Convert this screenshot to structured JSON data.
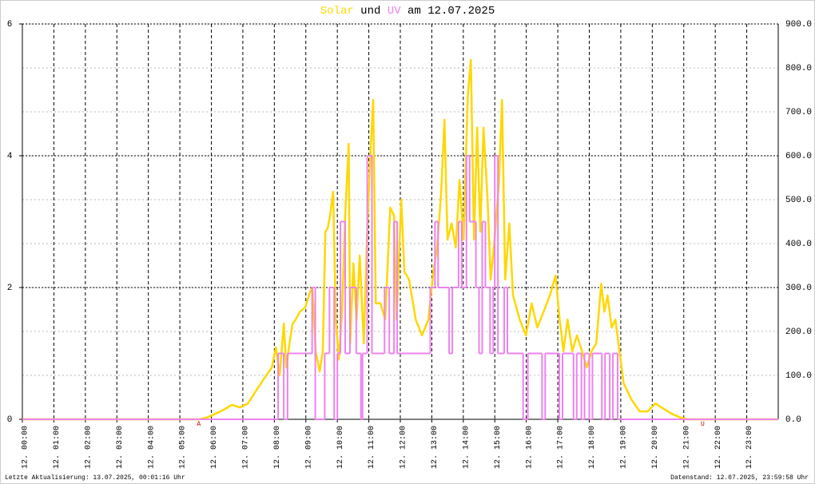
{
  "chart_data": {
    "type": "line",
    "title_joiner": "und",
    "title_suffix": "am 12.07.2025",
    "footer_left": "Letzte Aktualisierung: 13.07.2025, 00:01:16 Uhr",
    "footer_right": "Datenstand: 12.07.2025, 23:59:58 Uhr",
    "xlim": [
      0,
      24
    ],
    "xticks": [
      {
        "value": 0,
        "label": "12. 00:00"
      },
      {
        "value": 1,
        "label": "12. 01:00"
      },
      {
        "value": 2,
        "label": "12. 02:00"
      },
      {
        "value": 3,
        "label": "12. 03:00"
      },
      {
        "value": 4,
        "label": "12. 04:00"
      },
      {
        "value": 5,
        "label": "12. 05:00"
      },
      {
        "value": 6,
        "label": "12. 06:00"
      },
      {
        "value": 7,
        "label": "12. 07:00"
      },
      {
        "value": 8,
        "label": "12. 08:00"
      },
      {
        "value": 9,
        "label": "12. 09:00"
      },
      {
        "value": 10,
        "label": "12. 10:00"
      },
      {
        "value": 11,
        "label": "12. 11:00"
      },
      {
        "value": 12,
        "label": "12. 12:00"
      },
      {
        "value": 13,
        "label": "12. 13:00"
      },
      {
        "value": 14,
        "label": "12. 14:00"
      },
      {
        "value": 15,
        "label": "12. 15:00"
      },
      {
        "value": 16,
        "label": "12. 16:00"
      },
      {
        "value": 17,
        "label": "12. 17:00"
      },
      {
        "value": 18,
        "label": "12. 18:00"
      },
      {
        "value": 19,
        "label": "12. 19:00"
      },
      {
        "value": 20,
        "label": "12. 20:00"
      },
      {
        "value": 21,
        "label": "12. 21:00"
      },
      {
        "value": 22,
        "label": "12. 22:00"
      },
      {
        "value": 23,
        "label": "12. 23:00"
      }
    ],
    "ylim": [
      0,
      6
    ],
    "yticks": [
      0,
      2,
      4,
      6
    ],
    "y2lim": [
      0,
      900
    ],
    "y2ticks": [
      {
        "value": 0,
        "label": "0.0"
      },
      {
        "value": 100,
        "label": "100.0"
      },
      {
        "value": 200,
        "label": "200.0"
      },
      {
        "value": 300,
        "label": "300.0"
      },
      {
        "value": 400,
        "label": "400.0"
      },
      {
        "value": 500,
        "label": "500.0"
      },
      {
        "value": 600,
        "label": "600.0"
      },
      {
        "value": 700,
        "label": "700.0"
      },
      {
        "value": 800,
        "label": "800.0"
      },
      {
        "value": 900,
        "label": "900.0"
      }
    ],
    "grid": true,
    "markers": [
      {
        "label": "A",
        "x": 5.6,
        "color": "#c00000"
      },
      {
        "label": "U",
        "x": 21.6,
        "color": "#c00000"
      }
    ],
    "series": [
      {
        "name": "Solar",
        "color": "#ffd700",
        "axis": "y2",
        "x": [
          0,
          5.3,
          5.63,
          5.89,
          6.14,
          6.4,
          6.65,
          6.9,
          7.16,
          7.41,
          7.66,
          7.92,
          8.05,
          8.17,
          8.3,
          8.38,
          8.48,
          8.58,
          8.68,
          8.81,
          8.98,
          9.14,
          9.21,
          9.31,
          9.44,
          9.54,
          9.62,
          9.7,
          9.77,
          9.87,
          9.95,
          10.05,
          10.15,
          10.25,
          10.36,
          10.41,
          10.51,
          10.61,
          10.71,
          10.84,
          10.94,
          11.04,
          11.14,
          11.22,
          11.37,
          11.52,
          11.68,
          11.8,
          11.88,
          12.03,
          12.13,
          12.28,
          12.49,
          12.69,
          12.89,
          13.05,
          13.17,
          13.3,
          13.4,
          13.5,
          13.63,
          13.76,
          13.88,
          14.01,
          14.14,
          14.24,
          14.34,
          14.44,
          14.54,
          14.64,
          14.77,
          14.87,
          14.99,
          15.13,
          15.23,
          15.33,
          15.46,
          15.58,
          15.79,
          15.99,
          16.17,
          16.35,
          16.55,
          16.75,
          16.93,
          17.06,
          17.18,
          17.31,
          17.46,
          17.61,
          17.77,
          17.92,
          18.07,
          18.22,
          18.38,
          18.48,
          18.58,
          18.71,
          18.83,
          18.96,
          19.09,
          19.34,
          19.6,
          19.85,
          20.1,
          20.36,
          20.61,
          20.86,
          21.12,
          24
        ],
        "values": [
          0,
          0,
          0,
          5,
          13,
          22,
          33,
          27,
          36,
          64,
          91,
          118,
          164,
          100,
          218,
          118,
          173,
          218,
          227,
          245,
          255,
          291,
          300,
          155,
          109,
          155,
          427,
          436,
          464,
          518,
          227,
          136,
          245,
          464,
          627,
          173,
          355,
          227,
          373,
          173,
          409,
          591,
          727,
          264,
          264,
          227,
          482,
          464,
          227,
          500,
          336,
          318,
          227,
          191,
          227,
          336,
          391,
          518,
          682,
          409,
          446,
          391,
          545,
          409,
          736,
          818,
          409,
          664,
          427,
          664,
          500,
          318,
          409,
          536,
          727,
          318,
          446,
          282,
          227,
          191,
          264,
          209,
          245,
          282,
          327,
          227,
          155,
          227,
          155,
          191,
          155,
          118,
          155,
          173,
          309,
          245,
          282,
          209,
          227,
          155,
          82,
          45,
          18,
          18,
          36,
          24,
          13,
          5,
          0,
          0
        ]
      },
      {
        "name": "UV",
        "color": "#ee82ee",
        "axis": "y",
        "step": "post",
        "x": [
          0,
          8.12,
          8.3,
          8.42,
          9.2,
          9.3,
          9.6,
          9.75,
          9.9,
          10.0,
          10.1,
          10.25,
          10.4,
          10.6,
          10.75,
          10.8,
          10.95,
          11.1,
          11.5,
          11.65,
          11.8,
          11.9,
          12.95,
          13.1,
          13.2,
          13.55,
          13.65,
          13.85,
          13.95,
          14.1,
          14.2,
          14.4,
          14.5,
          14.6,
          14.7,
          14.85,
          14.95,
          15.0,
          15.1,
          15.3,
          15.4,
          15.9,
          16.05,
          16.5,
          16.6,
          17.05,
          17.15,
          17.5,
          17.6,
          17.75,
          17.85,
          18.0,
          18.1,
          18.4,
          18.5,
          18.65,
          18.75,
          18.9,
          24
        ],
        "values": [
          0,
          1,
          0,
          1,
          2,
          0,
          1,
          2,
          0,
          1,
          3,
          1,
          2,
          1,
          0,
          1,
          4,
          1,
          2,
          1,
          3,
          1,
          2,
          3,
          2,
          1,
          2,
          3,
          2,
          4,
          3,
          2,
          1,
          3,
          2,
          1,
          2,
          4,
          1,
          2,
          1,
          0,
          1,
          0,
          1,
          0,
          1,
          0,
          1,
          0,
          1,
          0,
          1,
          0,
          1,
          0,
          1,
          0,
          0
        ]
      }
    ]
  }
}
